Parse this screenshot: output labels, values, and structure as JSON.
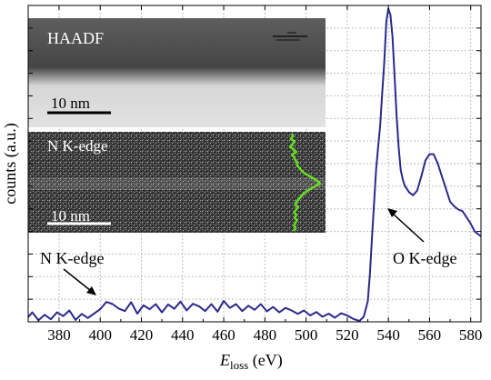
{
  "chart_data": {
    "type": "line",
    "xlabel_main": "E",
    "xlabel_sub": "loss",
    "xlabel_unit": " (eV)",
    "ylabel": "counts (a.u.)",
    "xlim": [
      365,
      585
    ],
    "ylim": [
      0,
      100
    ],
    "x_ticks": [
      380,
      400,
      420,
      440,
      460,
      480,
      500,
      520,
      540,
      560,
      580
    ],
    "y_tick_count": 14,
    "grid": true,
    "colors": {
      "line": "#2a2a8c",
      "profile": "#66dd22",
      "grid": "#bdbdbd"
    },
    "series": [
      {
        "x": [
          365,
          367,
          370,
          373,
          376,
          379,
          382,
          385,
          388,
          391,
          394,
          397,
          400,
          403,
          406,
          409,
          412,
          415,
          418,
          421,
          424,
          427,
          430,
          433,
          436,
          439,
          442,
          445,
          448,
          451,
          454,
          457,
          460,
          463,
          466,
          469,
          472,
          475,
          478,
          481,
          484,
          487,
          490,
          493,
          496,
          499,
          502,
          505,
          508,
          511,
          514,
          517,
          520,
          523,
          526,
          528,
          530,
          531,
          532,
          533,
          534,
          535,
          536,
          537,
          538,
          539,
          540,
          541,
          542,
          543,
          544,
          545,
          546,
          547,
          548,
          549,
          550,
          552,
          554,
          556,
          558,
          560,
          562,
          564,
          566,
          568,
          570,
          572,
          574,
          576,
          578,
          580,
          582,
          585
        ],
        "y": [
          1.5,
          3.0,
          0.5,
          2.2,
          0.8,
          3.0,
          1.8,
          3.6,
          0.6,
          2.5,
          1.2,
          2.6,
          4.0,
          6.3,
          5.6,
          4.2,
          3.4,
          6.2,
          2.6,
          5.2,
          4.0,
          5.6,
          3.0,
          5.5,
          4.1,
          6.4,
          3.6,
          5.7,
          4.9,
          3.4,
          5.6,
          3.2,
          6.6,
          4.4,
          5.6,
          3.4,
          5.1,
          3.8,
          5.6,
          3.3,
          4.7,
          3.0,
          4.4,
          3.6,
          2.5,
          3.6,
          2.0,
          3.1,
          1.6,
          2.6,
          1.3,
          2.7,
          2.0,
          0.9,
          0.3,
          1.6,
          6.5,
          15,
          26,
          37,
          48,
          55,
          62,
          72,
          82,
          95,
          99,
          97,
          90,
          78,
          65,
          55,
          48,
          45,
          43,
          42,
          41,
          40,
          41.5,
          46,
          51,
          53,
          53,
          50,
          46,
          42,
          38,
          36.5,
          35.5,
          35,
          33,
          31,
          28.5,
          27
        ]
      }
    ],
    "annotations": [
      {
        "text": "N K-edge",
        "x": 400,
        "y": 4.2
      },
      {
        "text": "O K-edge",
        "x": 533,
        "y": 36
      }
    ],
    "insets": [
      {
        "label": "HAADF",
        "scalebar": "10 nm"
      },
      {
        "label": "N K-edge",
        "scalebar": "10 nm",
        "profile": [
          50,
          52,
          48,
          55,
          51,
          47,
          53,
          58,
          50,
          54,
          56,
          60,
          59,
          63,
          67,
          72,
          80,
          88,
          95,
          100,
          92,
          83,
          76,
          70,
          66,
          62,
          58,
          56,
          61,
          57,
          54,
          58,
          55,
          59,
          56,
          54,
          57,
          53
        ]
      }
    ]
  }
}
